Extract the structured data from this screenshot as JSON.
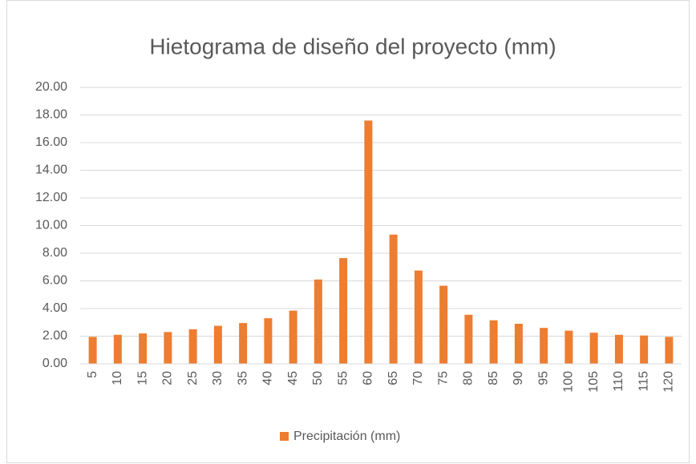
{
  "chart_data": {
    "type": "bar",
    "title": "Hietograma de diseño del proyecto (mm)",
    "categories": [
      "5",
      "10",
      "15",
      "20",
      "25",
      "30",
      "35",
      "40",
      "45",
      "50",
      "55",
      "60",
      "65",
      "70",
      "75",
      "80",
      "85",
      "90",
      "95",
      "100",
      "105",
      "110",
      "115",
      "120"
    ],
    "series": [
      {
        "name": "Precipitación (mm)",
        "color": "#ed7d31",
        "values": [
          1.95,
          2.1,
          2.2,
          2.3,
          2.5,
          2.75,
          2.95,
          3.3,
          3.85,
          6.1,
          7.65,
          17.6,
          9.35,
          6.75,
          5.65,
          3.55,
          3.15,
          2.9,
          2.6,
          2.4,
          2.25,
          2.1,
          2.05,
          1.95
        ]
      }
    ],
    "ylim": [
      0,
      20
    ],
    "yticks": [
      {
        "value": 0,
        "label": "0.00"
      },
      {
        "value": 2,
        "label": "2.00"
      },
      {
        "value": 4,
        "label": "4.00"
      },
      {
        "value": 6,
        "label": "6.00"
      },
      {
        "value": 8,
        "label": "8.00"
      },
      {
        "value": 10,
        "label": "10.00"
      },
      {
        "value": 12,
        "label": "12.00"
      },
      {
        "value": 14,
        "label": "14.00"
      },
      {
        "value": 16,
        "label": "16.00"
      },
      {
        "value": 18,
        "label": "18.00"
      },
      {
        "value": 20,
        "label": "20.00"
      }
    ],
    "grid": true,
    "legend": "bottom"
  }
}
